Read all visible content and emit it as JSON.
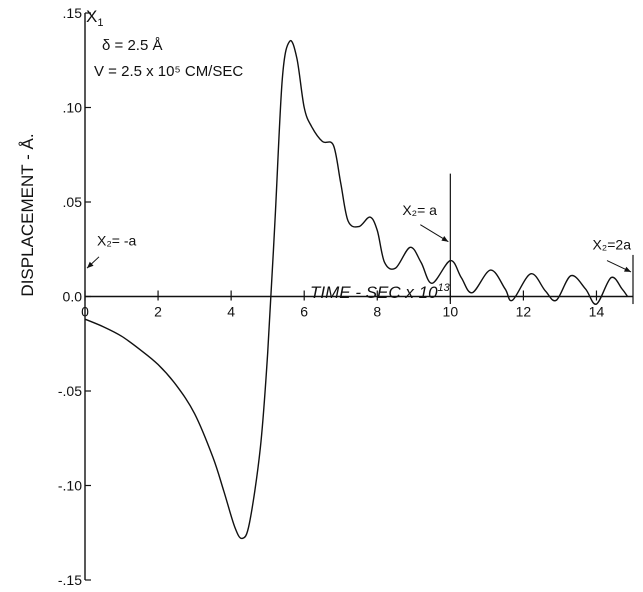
{
  "chart_data": {
    "type": "line",
    "xlabel_parts": [
      "TIME - SEC x 10",
      "13"
    ],
    "ylabel": "DISPLACEMENT - Å.",
    "y_axis_symbol": [
      "X",
      "1"
    ],
    "xlim": [
      0,
      15
    ],
    "ylim": [
      -0.15,
      0.15
    ],
    "x_ticks": [
      0,
      2,
      4,
      6,
      8,
      10,
      12,
      14
    ],
    "x_tick_labels": [
      "0",
      "2",
      "4",
      "6",
      "8",
      "10",
      "12",
      "14"
    ],
    "y_ticks": [
      0.15,
      0.1,
      0.05,
      0.0,
      -0.05,
      -0.1,
      -0.15
    ],
    "y_tick_labels": [
      ".15",
      ".10",
      ".05",
      "0.0",
      "-.05",
      "-.10",
      "-.15"
    ],
    "grid": false,
    "params": [
      "δ = 2.5 Å",
      "V = 2.5 x 10⁵ CM/SEC"
    ],
    "markers": [
      {
        "x": 0,
        "label": "X₂= -a"
      },
      {
        "x": 10,
        "label": "X₂= a"
      },
      {
        "x": 15,
        "label": "X₂=2a"
      }
    ],
    "series": [
      {
        "x": [
          0,
          0.5,
          1.0,
          1.5,
          2.0,
          2.5,
          3.0,
          3.5,
          3.8,
          4.1,
          4.3,
          4.5,
          4.8,
          5.0,
          5.2,
          5.4,
          5.6,
          5.8,
          6.0,
          6.2,
          6.5,
          6.8,
          7.0,
          7.2,
          7.5,
          7.8,
          8.0,
          8.2,
          8.5,
          8.9,
          9.2,
          9.5,
          10.0,
          10.3,
          10.6,
          11.1,
          11.5,
          11.7,
          12.2,
          12.6,
          12.9,
          13.3,
          13.7,
          14.0,
          14.4,
          14.7,
          14.85
        ],
        "y": [
          -0.012,
          -0.016,
          -0.021,
          -0.028,
          -0.036,
          -0.047,
          -0.062,
          -0.085,
          -0.103,
          -0.122,
          -0.128,
          -0.12,
          -0.08,
          -0.03,
          0.04,
          0.115,
          0.135,
          0.126,
          0.1,
          0.09,
          0.082,
          0.08,
          0.06,
          0.04,
          0.037,
          0.042,
          0.035,
          0.018,
          0.015,
          0.026,
          0.018,
          0.007,
          0.019,
          0.01,
          0.002,
          0.014,
          0.004,
          -0.002,
          0.012,
          0.003,
          -0.002,
          0.011,
          0.004,
          -0.004,
          0.01,
          0.004,
          0.0
        ]
      }
    ]
  }
}
